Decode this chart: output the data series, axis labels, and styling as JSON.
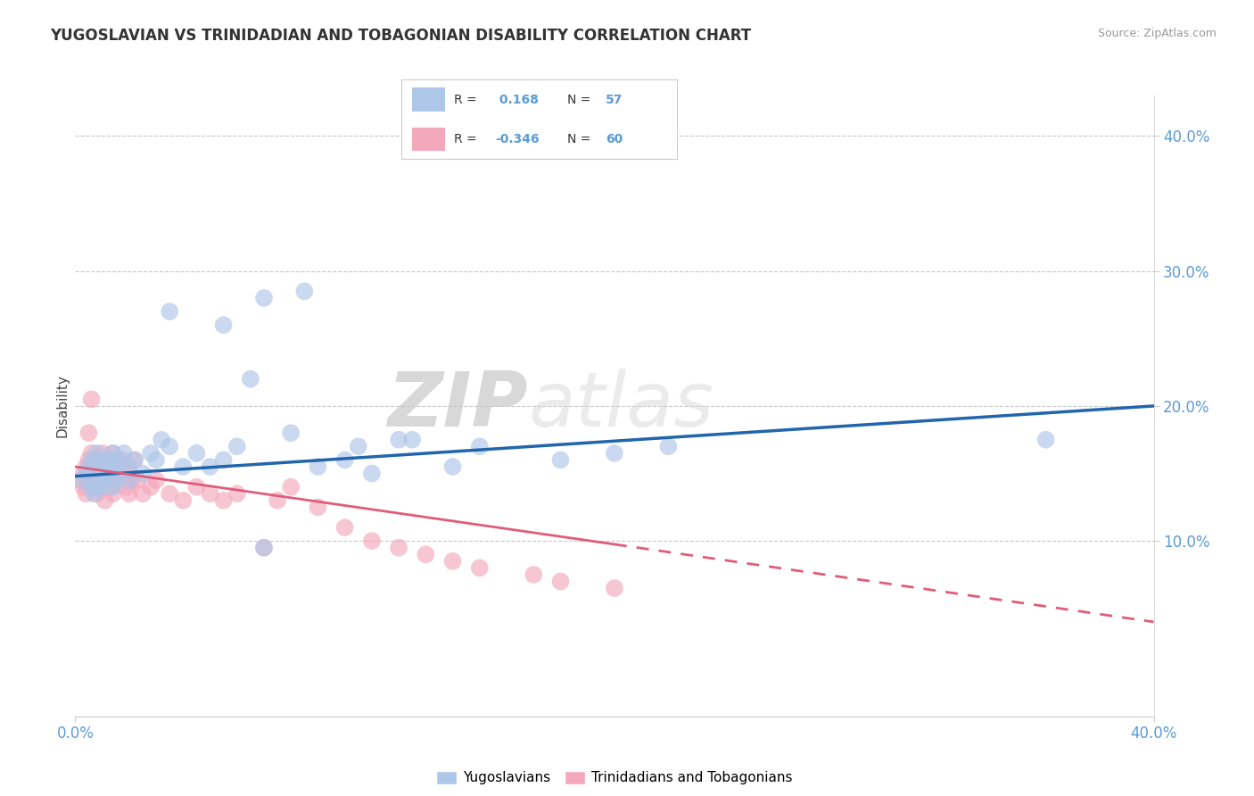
{
  "title": "YUGOSLAVIAN VS TRINIDADIAN AND TOBAGONIAN DISABILITY CORRELATION CHART",
  "source": "Source: ZipAtlas.com",
  "ylabel": "Disability",
  "blue_R": 0.168,
  "blue_N": 57,
  "pink_R": -0.346,
  "pink_N": 60,
  "blue_color": "#aec6e8",
  "pink_color": "#f4a8bc",
  "blue_line_color": "#2166ac",
  "pink_line_color": "#e05c7a",
  "legend_label_blue": "Yugoslavians",
  "legend_label_pink": "Trinidadians and Tobagonians",
  "blue_line_x0": 0,
  "blue_line_y0": 14.8,
  "blue_line_x1": 40,
  "blue_line_y1": 20.0,
  "pink_line_x0": 0,
  "pink_line_y0": 15.5,
  "pink_line_x1": 40,
  "pink_line_y1": 4.0,
  "pink_solid_end": 20.0,
  "blue_scatter_x": [
    0.3,
    0.4,
    0.5,
    0.6,
    0.6,
    0.7,
    0.7,
    0.8,
    0.8,
    0.9,
    0.9,
    1.0,
    1.0,
    1.1,
    1.1,
    1.2,
    1.2,
    1.3,
    1.4,
    1.4,
    1.5,
    1.5,
    1.6,
    1.7,
    1.8,
    2.0,
    2.0,
    2.2,
    2.5,
    2.8,
    3.0,
    3.2,
    3.5,
    4.0,
    4.5,
    5.0,
    5.5,
    6.0,
    7.0,
    8.0,
    9.0,
    10.0,
    11.0,
    12.0,
    36.0,
    3.5,
    5.5,
    7.0,
    8.5,
    10.5,
    12.5,
    6.5,
    14.0,
    15.0,
    18.0,
    20.0,
    22.0
  ],
  "blue_scatter_y": [
    14.5,
    15.0,
    15.5,
    14.0,
    16.0,
    13.5,
    15.5,
    14.0,
    16.5,
    14.5,
    15.5,
    14.0,
    16.0,
    15.0,
    14.5,
    16.0,
    15.5,
    15.0,
    16.5,
    14.0,
    14.5,
    15.5,
    16.0,
    15.0,
    16.5,
    15.5,
    14.5,
    16.0,
    15.0,
    16.5,
    16.0,
    17.5,
    17.0,
    15.5,
    16.5,
    15.5,
    16.0,
    17.0,
    9.5,
    18.0,
    15.5,
    16.0,
    15.0,
    17.5,
    17.5,
    27.0,
    26.0,
    28.0,
    28.5,
    17.0,
    17.5,
    22.0,
    15.5,
    17.0,
    16.0,
    16.5,
    17.0
  ],
  "pink_scatter_x": [
    0.2,
    0.3,
    0.3,
    0.4,
    0.4,
    0.5,
    0.5,
    0.6,
    0.6,
    0.7,
    0.7,
    0.8,
    0.8,
    0.9,
    0.9,
    1.0,
    1.0,
    1.1,
    1.1,
    1.2,
    1.2,
    1.3,
    1.3,
    1.4,
    1.4,
    1.5,
    1.5,
    1.6,
    1.7,
    1.8,
    1.9,
    2.0,
    2.0,
    2.1,
    2.2,
    2.3,
    2.5,
    2.8,
    3.0,
    3.5,
    4.0,
    4.5,
    5.0,
    5.5,
    6.0,
    7.0,
    7.5,
    8.0,
    9.0,
    10.0,
    11.0,
    12.0,
    13.0,
    14.0,
    15.0,
    17.0,
    18.0,
    20.0,
    0.5,
    0.6
  ],
  "pink_scatter_y": [
    14.5,
    15.0,
    14.0,
    15.5,
    13.5,
    16.0,
    14.5,
    15.0,
    16.5,
    14.0,
    15.5,
    13.5,
    16.0,
    14.5,
    15.0,
    16.5,
    14.0,
    15.5,
    13.0,
    16.0,
    14.5,
    15.5,
    14.0,
    16.5,
    13.5,
    15.0,
    16.0,
    14.5,
    15.5,
    16.0,
    14.0,
    13.5,
    15.0,
    14.5,
    16.0,
    14.5,
    13.5,
    14.0,
    14.5,
    13.5,
    13.0,
    14.0,
    13.5,
    13.0,
    13.5,
    9.5,
    13.0,
    14.0,
    12.5,
    11.0,
    10.0,
    9.5,
    9.0,
    8.5,
    8.0,
    7.5,
    7.0,
    6.5,
    18.0,
    20.5
  ],
  "xlim": [
    0.0,
    40.0
  ],
  "ylim": [
    -3.0,
    43.0
  ],
  "ytick_vals": [
    10.0,
    20.0,
    30.0,
    40.0
  ],
  "ytick_labels": [
    "10.0%",
    "20.0%",
    "30.0%",
    "40.0%"
  ],
  "xtick_vals": [
    0.0,
    40.0
  ],
  "xtick_labels": [
    "0.0%",
    "40.0%"
  ],
  "watermark_zip": "ZIP",
  "watermark_atlas": "atlas",
  "background_color": "#ffffff",
  "grid_color": "#c8c8c8"
}
